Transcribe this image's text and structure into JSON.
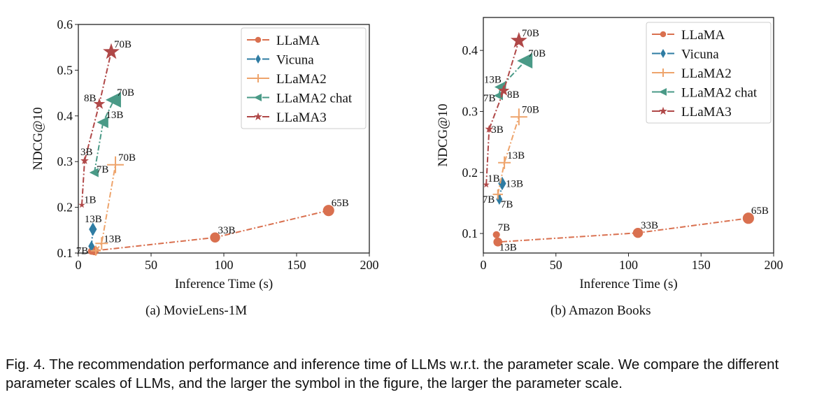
{
  "colors": {
    "LLaMA": "#d9704f",
    "Vicuna": "#2f7ca3",
    "LLaMA2": "#eea46c",
    "LLaMA2 chat": "#4a9a87",
    "LLaMA3": "#b04848"
  },
  "markers": {
    "LLaMA": "circle",
    "Vicuna": "diamond",
    "LLaMA2": "plus",
    "LLaMA2 chat": "triangle-left",
    "LLaMA3": "star"
  },
  "chart_data": [
    {
      "type": "scatter",
      "subtitle": "(a)  MovieLens-1M",
      "xlabel": "Inference Time (s)",
      "ylabel": "NDCG@10",
      "xlim": [
        0,
        200
      ],
      "ylim": [
        0.1,
        0.6
      ],
      "xticks": [
        0,
        50,
        100,
        150,
        200
      ],
      "yticks": [
        0.1,
        0.2,
        0.3,
        0.4,
        0.5,
        0.6
      ],
      "ytick_labels": [
        "0.1",
        "0.2",
        "0.3",
        "0.4",
        "0.5",
        "0.6"
      ],
      "legend": "top-right",
      "series": [
        {
          "name": "LLaMA",
          "points": [
            {
              "label": "7B",
              "x": 9,
              "y": 0.104
            },
            {
              "label": "13B",
              "x": 11,
              "y": 0.105
            },
            {
              "label": "33B",
              "x": 94,
              "y": 0.134
            },
            {
              "label": "65B",
              "x": 172,
              "y": 0.193
            }
          ]
        },
        {
          "name": "Vicuna",
          "points": [
            {
              "label": "7B",
              "x": 9,
              "y": 0.115
            },
            {
              "label": "13B",
              "x": 10,
              "y": 0.152
            }
          ]
        },
        {
          "name": "LLaMA2",
          "points": [
            {
              "label": "7B",
              "x": 12,
              "y": 0.105
            },
            {
              "label": "13B",
              "x": 16,
              "y": 0.121
            },
            {
              "label": "70B",
              "x": 25.5,
              "y": 0.293
            }
          ]
        },
        {
          "name": "LLaMA2 chat",
          "points": [
            {
              "label": "7B",
              "x": 11,
              "y": 0.276
            },
            {
              "label": "13B",
              "x": 17,
              "y": 0.386
            },
            {
              "label": "70B",
              "x": 24.5,
              "y": 0.435
            }
          ]
        },
        {
          "name": "LLaMA3",
          "points": [
            {
              "label": "1B",
              "x": 2.4,
              "y": 0.205
            },
            {
              "label": "3B",
              "x": 4.3,
              "y": 0.302
            },
            {
              "label": "8B",
              "x": 14.4,
              "y": 0.426
            },
            {
              "label": "70B",
              "x": 22.6,
              "y": 0.54
            }
          ]
        }
      ]
    },
    {
      "type": "scatter",
      "subtitle": "(b)  Amazon Books",
      "xlabel": "Inference Time (s)",
      "ylabel": "NDCG@10",
      "xlim": [
        0,
        200
      ],
      "ylim": [
        0.068,
        0.454
      ],
      "xticks": [
        0,
        50,
        100,
        150,
        200
      ],
      "yticks": [
        0.1,
        0.2,
        0.3,
        0.4
      ],
      "ytick_labels": [
        "0.1",
        "0.2",
        "0.3",
        "0.4"
      ],
      "legend": "top-right",
      "series": [
        {
          "name": "LLaMA",
          "points": [
            {
              "label": "7B",
              "x": 9,
              "y": 0.098
            },
            {
              "label": "13B",
              "x": 10,
              "y": 0.086
            },
            {
              "label": "33B",
              "x": 106.5,
              "y": 0.101
            },
            {
              "label": "65B",
              "x": 182.6,
              "y": 0.125
            }
          ]
        },
        {
          "name": "Vicuna",
          "points": [
            {
              "label": "7B",
              "x": 11,
              "y": 0.156
            },
            {
              "label": "13B",
              "x": 13,
              "y": 0.182
            }
          ]
        },
        {
          "name": "LLaMA2",
          "points": [
            {
              "label": "7B",
              "x": 10,
              "y": 0.164
            },
            {
              "label": "13B",
              "x": 14.5,
              "y": 0.216
            },
            {
              "label": "70B",
              "x": 24.5,
              "y": 0.291
            }
          ]
        },
        {
          "name": "LLaMA2 chat",
          "points": [
            {
              "label": "7B",
              "x": 10.6,
              "y": 0.326
            },
            {
              "label": "13B",
              "x": 12,
              "y": 0.34
            },
            {
              "label": "70B",
              "x": 29,
              "y": 0.383
            }
          ]
        },
        {
          "name": "LLaMA3",
          "points": [
            {
              "label": "1B",
              "x": 2,
              "y": 0.18
            },
            {
              "label": "3B",
              "x": 4,
              "y": 0.271
            },
            {
              "label": "8B",
              "x": 14,
              "y": 0.334
            },
            {
              "label": "70B",
              "x": 24.5,
              "y": 0.416
            }
          ]
        }
      ]
    }
  ],
  "caption": "Fig. 4.  The recommendation performance and inference time of LLMs w.r.t. the parameter scale. We compare the different parameter scales of LLMs, and the larger the symbol in the figure, the larger the parameter scale."
}
